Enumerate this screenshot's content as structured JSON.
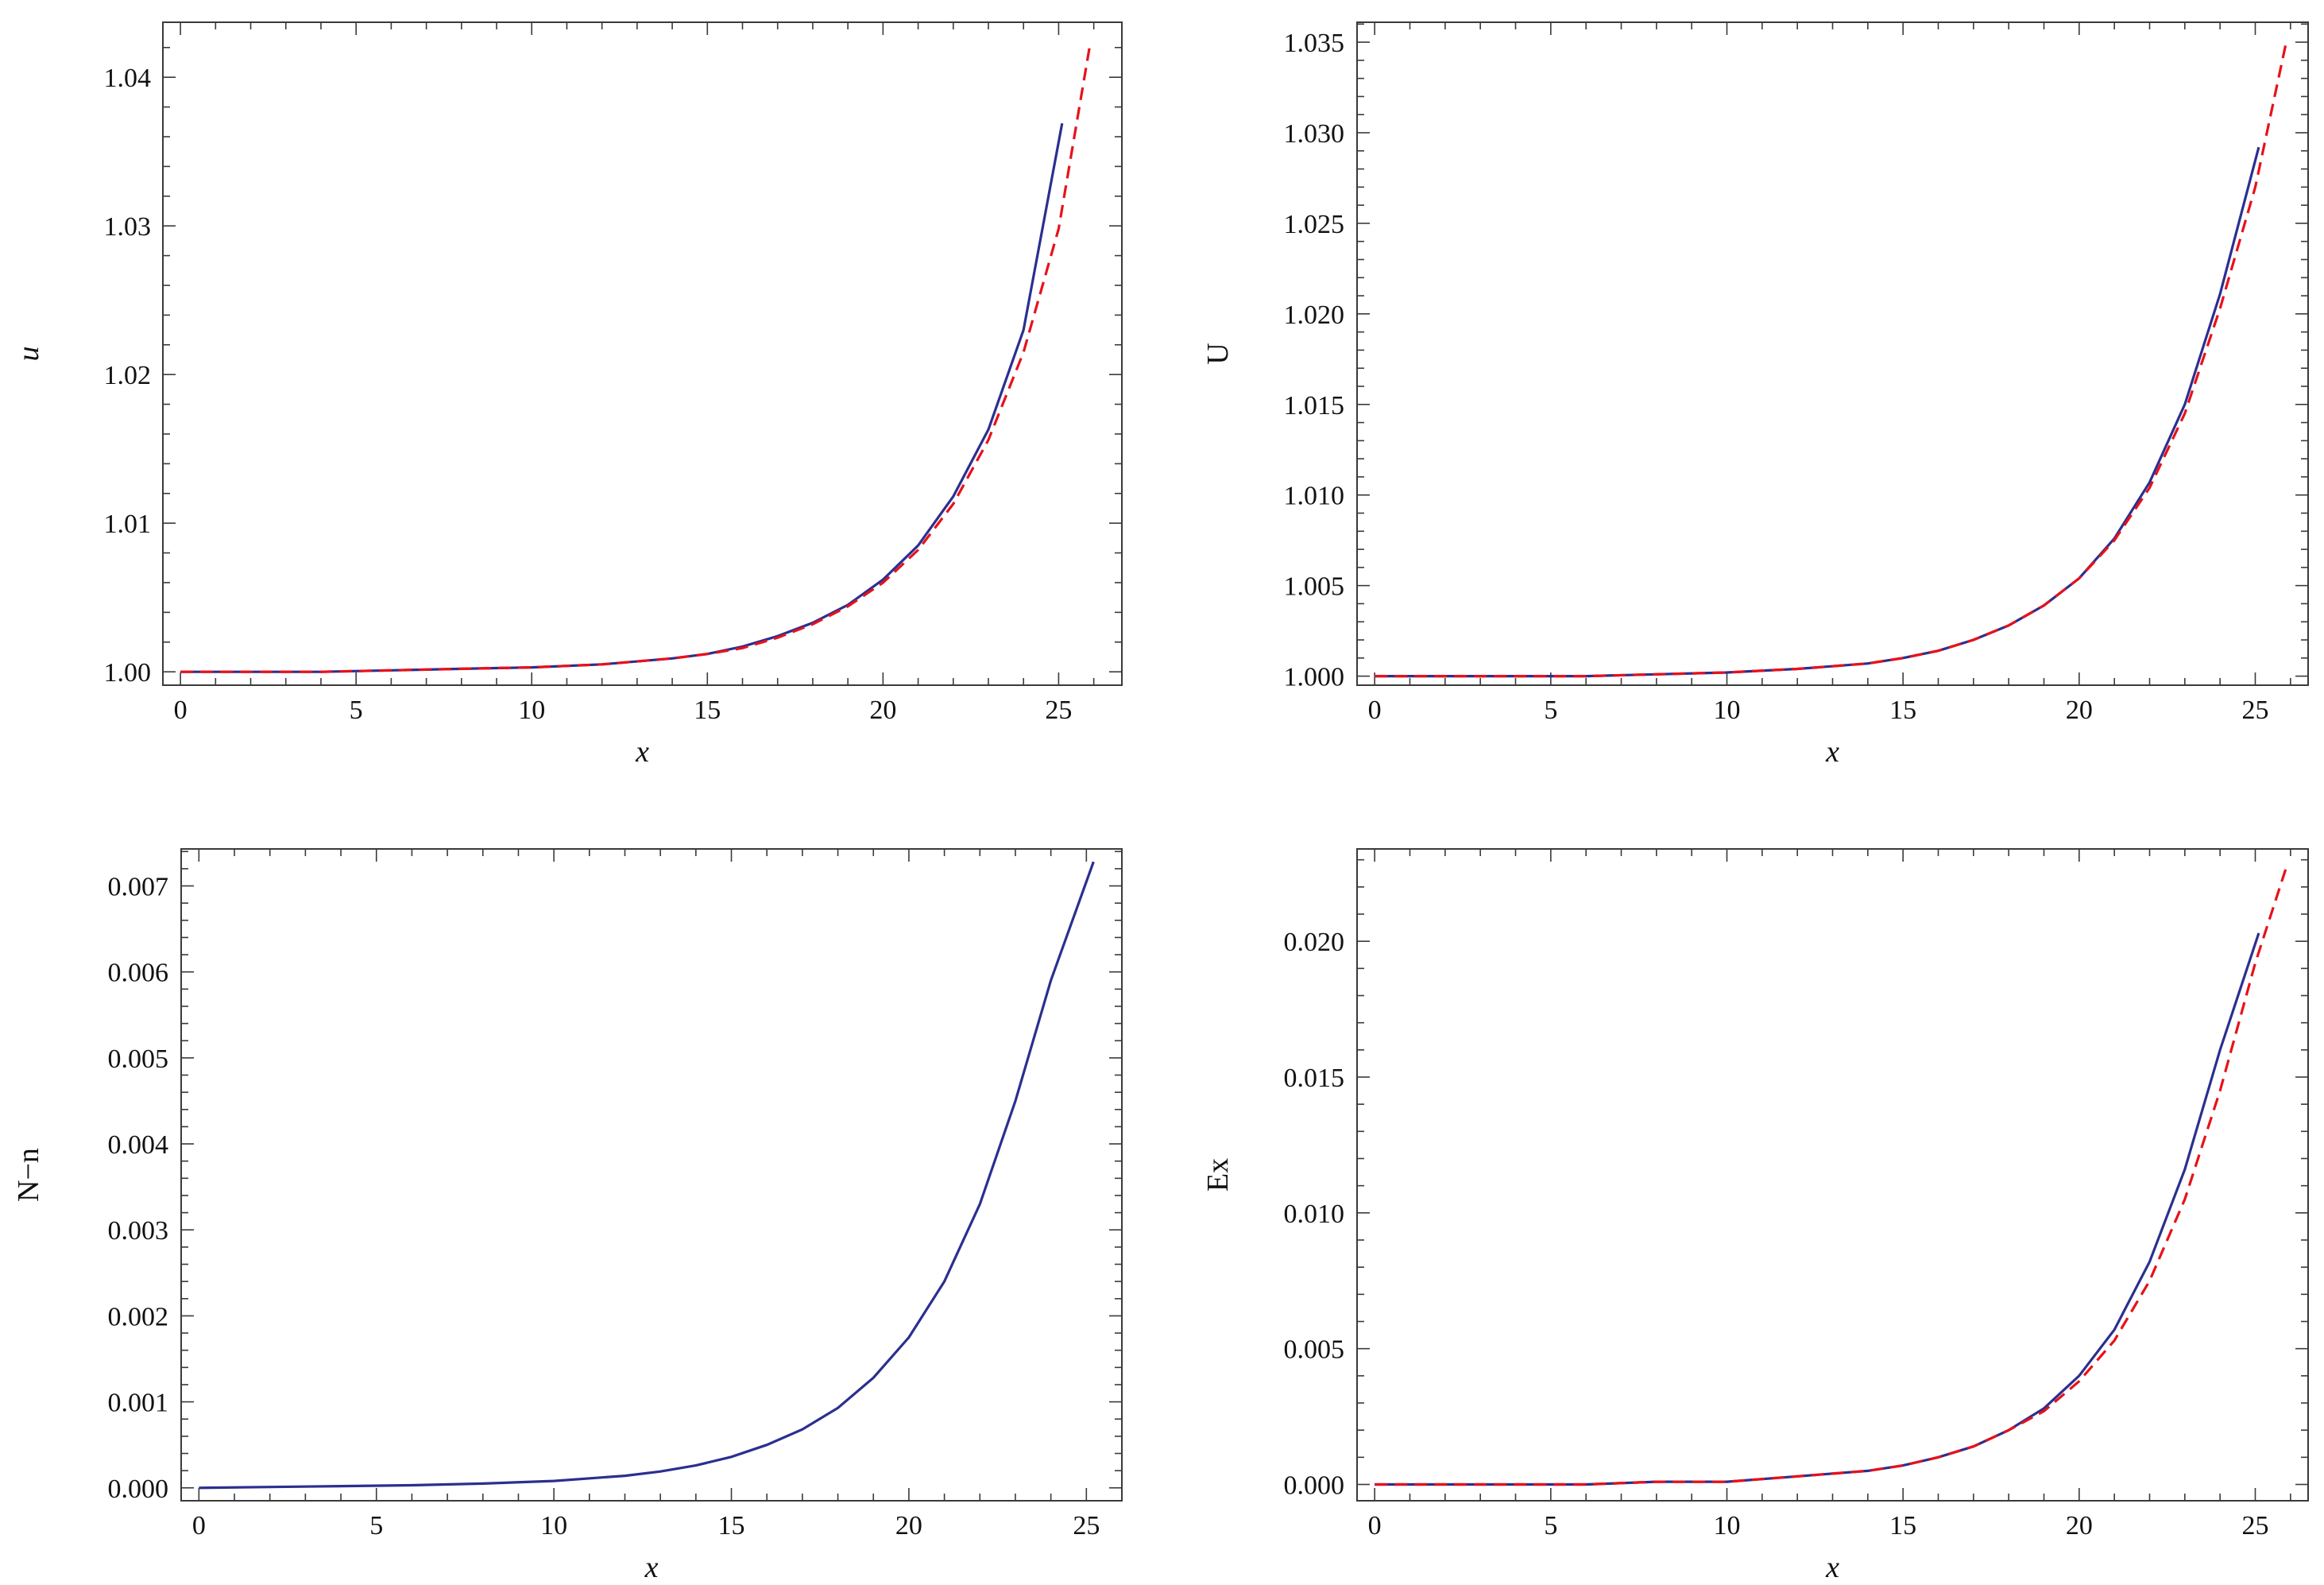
{
  "chart_data": [
    {
      "type": "line",
      "xlabel": "x",
      "ylabel": "u",
      "ylabel_italic": true,
      "xlim": [
        -0.5,
        26.8
      ],
      "ylim": [
        0.9991,
        1.0437
      ],
      "xticks": [
        0,
        5,
        10,
        15,
        20,
        25
      ],
      "xtick_labels": [
        "0",
        "5",
        "10",
        "15",
        "20",
        "25"
      ],
      "yticks": [
        1.0,
        1.01,
        1.02,
        1.03,
        1.04
      ],
      "ytick_labels": [
        "1.00",
        "1.01",
        "1.02",
        "1.03",
        "1.04"
      ],
      "grid": false,
      "series": [
        {
          "style": "solid",
          "color": "#2b2f8f",
          "x": [
            0,
            2,
            4,
            6,
            8,
            10,
            12,
            14,
            15,
            16,
            17,
            18,
            19,
            20,
            21,
            22,
            23,
            24,
            25.1
          ],
          "y": [
            1.0,
            1.0,
            1.0,
            1.0001,
            1.0002,
            1.0003,
            1.0005,
            1.0009,
            1.0012,
            1.0017,
            1.0024,
            1.0033,
            1.0045,
            1.0062,
            1.0085,
            1.0118,
            1.0163,
            1.023,
            1.0369
          ]
        },
        {
          "style": "dashed",
          "color": "#e8111a",
          "x": [
            0,
            2,
            4,
            6,
            8,
            10,
            12,
            14,
            15,
            16,
            17,
            18,
            19,
            20,
            21,
            22,
            23,
            24,
            25,
            25.9
          ],
          "y": [
            1.0,
            1.0,
            1.0,
            1.0001,
            1.0002,
            1.0003,
            1.0005,
            1.0009,
            1.0012,
            1.0016,
            1.0023,
            1.0032,
            1.0044,
            1.006,
            1.0082,
            1.0113,
            1.0156,
            1.0215,
            1.0298,
            1.0423
          ]
        }
      ]
    },
    {
      "type": "line",
      "xlabel": "x",
      "ylabel": "U",
      "ylabel_italic": false,
      "xlim": [
        -0.5,
        26.5
      ],
      "ylim": [
        0.9995,
        1.0361
      ],
      "xticks": [
        0,
        5,
        10,
        15,
        20,
        25
      ],
      "xtick_labels": [
        "0",
        "5",
        "10",
        "15",
        "20",
        "25"
      ],
      "yticks": [
        1.0,
        1.005,
        1.01,
        1.015,
        1.02,
        1.025,
        1.03,
        1.035
      ],
      "ytick_labels": [
        "1.000",
        "1.005",
        "1.010",
        "1.015",
        "1.020",
        "1.025",
        "1.030",
        "1.035"
      ],
      "grid": false,
      "series": [
        {
          "style": "solid",
          "color": "#2b2f8f",
          "x": [
            0,
            2,
            4,
            6,
            8,
            10,
            12,
            14,
            15,
            16,
            17,
            18,
            19,
            20,
            21,
            22,
            23,
            24,
            25.1
          ],
          "y": [
            1.0,
            1.0,
            1.0,
            1.0,
            1.0001,
            1.0002,
            1.0004,
            1.0007,
            1.001,
            1.0014,
            1.002,
            1.0028,
            1.0039,
            1.0054,
            1.0076,
            1.0107,
            1.015,
            1.0211,
            1.0292
          ]
        },
        {
          "style": "dashed",
          "color": "#e8111a",
          "x": [
            0,
            2,
            4,
            6,
            8,
            10,
            12,
            14,
            15,
            16,
            17,
            18,
            19,
            20,
            21,
            22,
            23,
            24,
            25,
            25.9
          ],
          "y": [
            1.0,
            1.0,
            1.0,
            1.0,
            1.0001,
            1.0002,
            1.0004,
            1.0007,
            1.001,
            1.0014,
            1.002,
            1.0028,
            1.0039,
            1.0054,
            1.0075,
            1.0104,
            1.0145,
            1.0203,
            1.027,
            1.0352
          ]
        }
      ]
    },
    {
      "type": "line",
      "xlabel": "x",
      "ylabel": "N−n",
      "ylabel_italic": false,
      "xlim": [
        -0.5,
        26.0
      ],
      "ylim": [
        -0.00015,
        0.00743
      ],
      "xticks": [
        0,
        5,
        10,
        15,
        20,
        25
      ],
      "xtick_labels": [
        "0",
        "5",
        "10",
        "15",
        "20",
        "25"
      ],
      "yticks": [
        0.0,
        0.001,
        0.002,
        0.003,
        0.004,
        0.005,
        0.006,
        0.007
      ],
      "ytick_labels": [
        "0.000",
        "0.001",
        "0.002",
        "0.003",
        "0.004",
        "0.005",
        "0.006",
        "0.007"
      ],
      "grid": false,
      "series": [
        {
          "style": "solid",
          "color": "#2b2f8f",
          "x": [
            0,
            2,
            4,
            6,
            8,
            10,
            12,
            13,
            14,
            15,
            16,
            17,
            18,
            19,
            20,
            21,
            22,
            23,
            24,
            25.2
          ],
          "y": [
            0.0,
            1e-05,
            2e-05,
            3e-05,
            5e-05,
            8e-05,
            0.00014,
            0.00019,
            0.00026,
            0.00036,
            0.0005,
            0.00068,
            0.00093,
            0.00128,
            0.00175,
            0.0024,
            0.0033,
            0.0045,
            0.0059,
            0.00728
          ]
        }
      ]
    },
    {
      "type": "line",
      "xlabel": "x",
      "ylabel": "Ex",
      "ylabel_italic": false,
      "xlim": [
        -0.5,
        26.5
      ],
      "ylim": [
        -0.0006,
        0.0234
      ],
      "xticks": [
        0,
        5,
        10,
        15,
        20,
        25
      ],
      "xtick_labels": [
        "0",
        "5",
        "10",
        "15",
        "20",
        "25"
      ],
      "yticks": [
        0.0,
        0.005,
        0.01,
        0.015,
        0.02
      ],
      "ytick_labels": [
        "0.000",
        "0.005",
        "0.010",
        "0.015",
        "0.020"
      ],
      "grid": false,
      "series": [
        {
          "style": "solid",
          "color": "#2b2f8f",
          "x": [
            0,
            2,
            4,
            6,
            8,
            10,
            12,
            14,
            15,
            16,
            17,
            18,
            19,
            20,
            21,
            22,
            23,
            24,
            25.1
          ],
          "y": [
            0.0,
            0.0,
            0.0,
            0.0,
            0.0001,
            0.0001,
            0.0003,
            0.0005,
            0.0007,
            0.001,
            0.0014,
            0.002,
            0.0028,
            0.004,
            0.0057,
            0.0082,
            0.0116,
            0.016,
            0.0203
          ]
        },
        {
          "style": "dashed",
          "color": "#e8111a",
          "x": [
            0,
            2,
            4,
            6,
            8,
            10,
            12,
            14,
            15,
            16,
            17,
            18,
            19,
            20,
            21,
            22,
            23,
            24,
            25,
            25.9
          ],
          "y": [
            0.0,
            0.0,
            0.0,
            0.0,
            0.0001,
            0.0001,
            0.0003,
            0.0005,
            0.0007,
            0.001,
            0.0014,
            0.002,
            0.0027,
            0.0038,
            0.0053,
            0.0075,
            0.0105,
            0.0145,
            0.0192,
            0.0228
          ]
        }
      ]
    }
  ]
}
